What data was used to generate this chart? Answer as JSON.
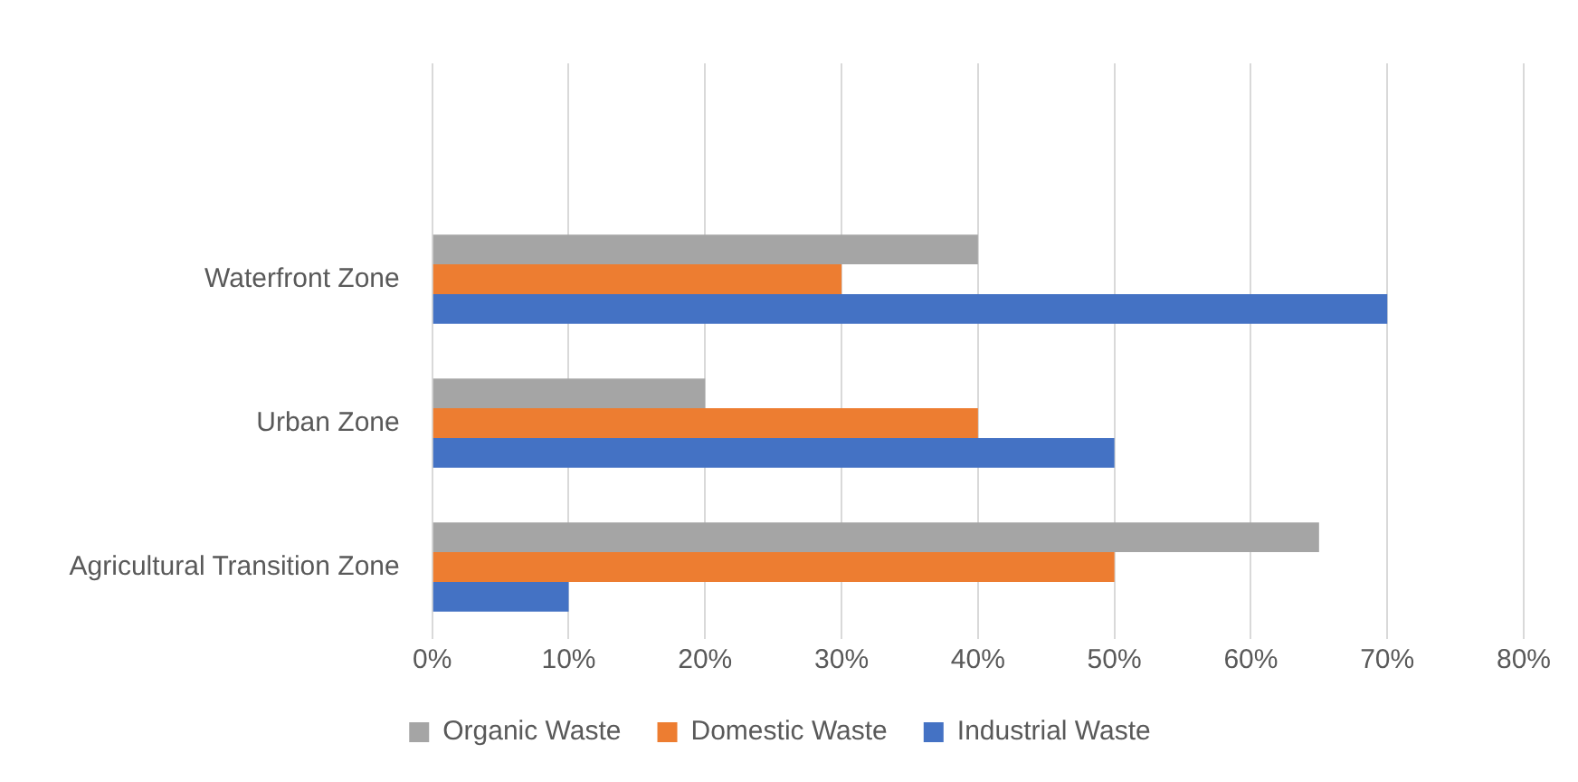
{
  "chart_data": {
    "type": "bar",
    "orientation": "horizontal",
    "categories": [
      null,
      "Waterfront Zone",
      "Urban Zone",
      "Agricultural Transition Zone"
    ],
    "series": [
      {
        "name": "Organic Waste",
        "color": "#a5a5a5",
        "values": [
          null,
          40,
          20,
          65
        ]
      },
      {
        "name": "Domestic Waste",
        "color": "#ed7d31",
        "values": [
          null,
          30,
          40,
          50
        ]
      },
      {
        "name": "Industrial Waste",
        "color": "#4472c4",
        "values": [
          null,
          70,
          50,
          10
        ]
      }
    ],
    "xlim": [
      0,
      80
    ],
    "xticks": [
      {
        "value": 0,
        "label": "0%"
      },
      {
        "value": 10,
        "label": "10%"
      },
      {
        "value": 20,
        "label": "20%"
      },
      {
        "value": 30,
        "label": "30%"
      },
      {
        "value": 40,
        "label": "40%"
      },
      {
        "value": 50,
        "label": "50%"
      },
      {
        "value": 60,
        "label": "60%"
      },
      {
        "value": 70,
        "label": "70%"
      },
      {
        "value": 80,
        "label": "80%"
      }
    ],
    "grid": "x",
    "legend": "bottom"
  }
}
